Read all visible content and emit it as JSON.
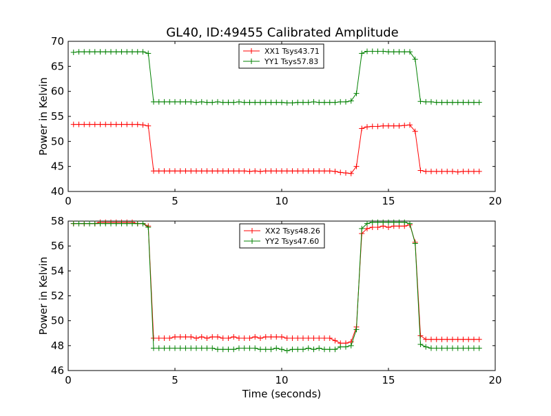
{
  "figure": {
    "title": "GL40, ID:49455 Calibrated Amplitude"
  },
  "chart_data": [
    {
      "type": "line",
      "title": "GL40, ID:49455 Calibrated Amplitude",
      "xlabel": "",
      "ylabel": "Power in Kelvin",
      "xlim": [
        0,
        20
      ],
      "ylim": [
        40,
        70
      ],
      "xticks": [
        0,
        5,
        10,
        15,
        20
      ],
      "yticks": [
        40,
        45,
        50,
        55,
        60,
        65,
        70
      ],
      "grid": false,
      "legend": "top-center",
      "x": [
        0.25,
        0.5,
        0.75,
        1.0,
        1.25,
        1.5,
        1.75,
        2.0,
        2.25,
        2.5,
        2.75,
        3.0,
        3.25,
        3.5,
        3.75,
        4.0,
        4.25,
        4.5,
        4.75,
        5.0,
        5.25,
        5.5,
        5.75,
        6.0,
        6.25,
        6.5,
        6.75,
        7.0,
        7.25,
        7.5,
        7.75,
        8.0,
        8.25,
        8.5,
        8.75,
        9.0,
        9.25,
        9.5,
        9.75,
        10.0,
        10.25,
        10.5,
        10.75,
        11.0,
        11.25,
        11.5,
        11.75,
        12.0,
        12.25,
        12.5,
        12.75,
        13.0,
        13.25,
        13.5,
        13.75,
        14.0,
        14.25,
        14.5,
        14.75,
        15.0,
        15.25,
        15.5,
        15.75,
        16.0,
        16.25,
        16.5,
        16.75,
        17.0,
        17.25,
        17.5,
        17.75,
        18.0,
        18.25,
        18.5,
        18.75,
        19.0,
        19.25
      ],
      "series": [
        {
          "name": "XX1 Tsys43.71",
          "color": "#ff0000",
          "values": [
            53.4,
            53.4,
            53.4,
            53.4,
            53.4,
            53.4,
            53.4,
            53.4,
            53.4,
            53.4,
            53.4,
            53.4,
            53.4,
            53.3,
            53.1,
            44.1,
            44.1,
            44.1,
            44.1,
            44.1,
            44.1,
            44.1,
            44.1,
            44.1,
            44.1,
            44.1,
            44.1,
            44.1,
            44.1,
            44.1,
            44.1,
            44.1,
            44.1,
            44.0,
            44.1,
            44.0,
            44.1,
            44.1,
            44.1,
            44.1,
            44.1,
            44.1,
            44.1,
            44.1,
            44.1,
            44.1,
            44.1,
            44.1,
            44.1,
            44.0,
            43.8,
            43.7,
            43.6,
            45.0,
            52.6,
            52.9,
            53.0,
            53.0,
            53.1,
            53.1,
            53.1,
            53.1,
            53.2,
            53.3,
            52.0,
            44.2,
            44.0,
            44.0,
            44.0,
            44.0,
            44.0,
            44.0,
            43.9,
            44.0,
            44.0,
            44.0,
            44.0
          ]
        },
        {
          "name": "YY1 Tsys57.83",
          "color": "#008000",
          "values": [
            67.8,
            67.9,
            67.9,
            67.9,
            67.9,
            67.9,
            67.9,
            67.9,
            67.9,
            67.9,
            67.9,
            67.9,
            67.9,
            67.9,
            67.6,
            57.9,
            57.9,
            57.9,
            57.9,
            57.9,
            57.9,
            57.9,
            57.9,
            57.8,
            57.9,
            57.8,
            57.8,
            57.9,
            57.8,
            57.8,
            57.8,
            57.9,
            57.8,
            57.8,
            57.8,
            57.8,
            57.8,
            57.8,
            57.8,
            57.8,
            57.7,
            57.7,
            57.8,
            57.8,
            57.8,
            57.9,
            57.8,
            57.8,
            57.8,
            57.8,
            57.9,
            57.9,
            58.1,
            59.6,
            67.6,
            68.0,
            68.0,
            68.0,
            68.0,
            67.9,
            67.9,
            67.9,
            67.9,
            67.9,
            66.4,
            58.0,
            57.9,
            57.9,
            57.8,
            57.8,
            57.8,
            57.8,
            57.8,
            57.8,
            57.8,
            57.8,
            57.8
          ]
        }
      ]
    },
    {
      "type": "line",
      "title": "",
      "xlabel": "Time (seconds)",
      "ylabel": "Power in Kelvin",
      "xlim": [
        0,
        20
      ],
      "ylim": [
        46,
        58
      ],
      "xticks": [
        0,
        5,
        10,
        15,
        20
      ],
      "yticks": [
        46,
        48,
        50,
        52,
        54,
        56,
        58
      ],
      "grid": false,
      "legend": "top-center",
      "x": [
        0.25,
        0.5,
        0.75,
        1.0,
        1.25,
        1.5,
        1.75,
        2.0,
        2.25,
        2.5,
        2.75,
        3.0,
        3.25,
        3.5,
        3.75,
        4.0,
        4.25,
        4.5,
        4.75,
        5.0,
        5.25,
        5.5,
        5.75,
        6.0,
        6.25,
        6.5,
        6.75,
        7.0,
        7.25,
        7.5,
        7.75,
        8.0,
        8.25,
        8.5,
        8.75,
        9.0,
        9.25,
        9.5,
        9.75,
        10.0,
        10.25,
        10.5,
        10.75,
        11.0,
        11.25,
        11.5,
        11.75,
        12.0,
        12.25,
        12.5,
        12.75,
        13.0,
        13.25,
        13.5,
        13.75,
        14.0,
        14.25,
        14.5,
        14.75,
        15.0,
        15.25,
        15.5,
        15.75,
        16.0,
        16.25,
        16.5,
        16.75,
        17.0,
        17.25,
        17.5,
        17.75,
        18.0,
        18.25,
        18.5,
        18.75,
        19.0,
        19.25
      ],
      "series": [
        {
          "name": "XX2 Tsys48.26",
          "color": "#ff0000",
          "values": [
            57.8,
            57.8,
            57.8,
            57.8,
            57.8,
            57.9,
            57.9,
            57.9,
            57.9,
            57.9,
            57.9,
            57.9,
            57.8,
            57.8,
            57.6,
            48.6,
            48.6,
            48.6,
            48.6,
            48.7,
            48.7,
            48.7,
            48.7,
            48.6,
            48.7,
            48.6,
            48.7,
            48.7,
            48.6,
            48.6,
            48.7,
            48.6,
            48.6,
            48.6,
            48.7,
            48.6,
            48.7,
            48.7,
            48.7,
            48.7,
            48.6,
            48.6,
            48.6,
            48.6,
            48.6,
            48.6,
            48.6,
            48.6,
            48.6,
            48.4,
            48.2,
            48.2,
            48.3,
            49.5,
            57.0,
            57.4,
            57.5,
            57.5,
            57.6,
            57.5,
            57.6,
            57.6,
            57.6,
            57.7,
            56.3,
            48.8,
            48.5,
            48.5,
            48.5,
            48.5,
            48.5,
            48.5,
            48.5,
            48.5,
            48.5,
            48.5,
            48.5
          ]
        },
        {
          "name": "YY2 Tsys47.60",
          "color": "#008000",
          "values": [
            57.8,
            57.8,
            57.8,
            57.8,
            57.8,
            57.8,
            57.8,
            57.8,
            57.8,
            57.8,
            57.8,
            57.8,
            57.8,
            57.8,
            57.5,
            47.8,
            47.8,
            47.8,
            47.8,
            47.8,
            47.8,
            47.8,
            47.8,
            47.8,
            47.8,
            47.8,
            47.8,
            47.7,
            47.7,
            47.7,
            47.7,
            47.8,
            47.8,
            47.8,
            47.8,
            47.7,
            47.7,
            47.7,
            47.8,
            47.7,
            47.6,
            47.7,
            47.7,
            47.7,
            47.8,
            47.7,
            47.8,
            47.7,
            47.7,
            47.7,
            47.9,
            47.9,
            48.0,
            49.3,
            57.4,
            57.8,
            57.9,
            57.9,
            57.9,
            57.9,
            57.9,
            57.9,
            57.9,
            57.8,
            56.2,
            48.1,
            47.9,
            47.8,
            47.8,
            47.8,
            47.8,
            47.8,
            47.8,
            47.8,
            47.8,
            47.8,
            47.8
          ]
        }
      ]
    }
  ]
}
